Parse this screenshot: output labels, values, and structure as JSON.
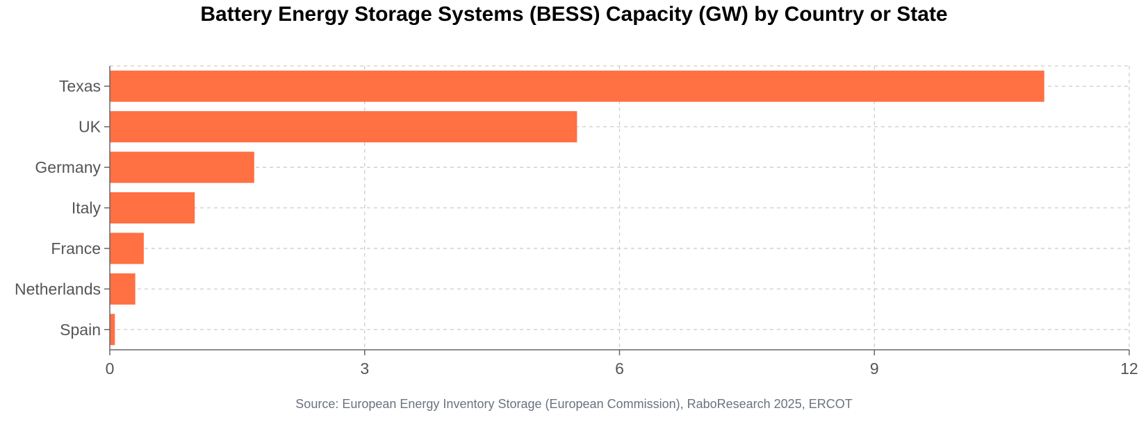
{
  "chart_data": {
    "type": "bar",
    "orientation": "horizontal",
    "title": "Battery Energy Storage Systems (BESS) Capacity (GW) by Country or State",
    "categories": [
      "Texas",
      "UK",
      "Germany",
      "Italy",
      "France",
      "Netherlands",
      "Spain"
    ],
    "values": [
      11.0,
      5.5,
      1.7,
      1.0,
      0.4,
      0.3,
      0.06
    ],
    "xlim": [
      0,
      12
    ],
    "xticks": [
      0,
      3,
      6,
      9,
      12
    ],
    "xlabel": "",
    "ylabel": "",
    "grid": true,
    "bar_color": "#FF7043",
    "source": "Source: European Energy Inventory Storage (European Commission), RaboResearch 2025, ERCOT"
  }
}
